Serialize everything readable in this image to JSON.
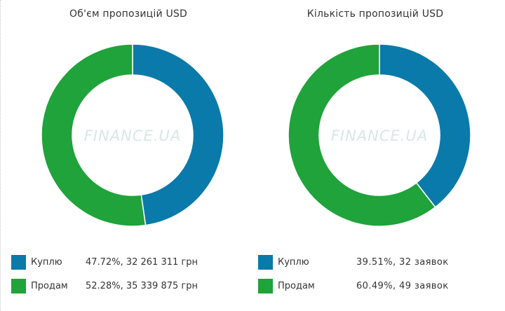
{
  "colors": {
    "buy": "#0a7aaa",
    "sell": "#1fa33a"
  },
  "watermark": "FINANCE.UA",
  "chart_data": [
    {
      "type": "pie",
      "title": "Об'єм пропозицій USD",
      "categories": [
        "Куплю",
        "Продам"
      ],
      "values": [
        47.72,
        52.28
      ],
      "legend": [
        {
          "label": "Куплю",
          "value_text": "47.72%, 32 261 311 грн"
        },
        {
          "label": "Продам",
          "value_text": "52.28%, 35 339 875 грн"
        }
      ],
      "legend_position": "bottom"
    },
    {
      "type": "pie",
      "title": "Кількість пропозицій USD",
      "categories": [
        "Куплю",
        "Продам"
      ],
      "values": [
        39.51,
        60.49
      ],
      "legend": [
        {
          "label": "Куплю",
          "value_text": "39.51%, 32 заявок"
        },
        {
          "label": "Продам",
          "value_text": "60.49%, 49 заявок"
        }
      ],
      "legend_position": "bottom"
    }
  ]
}
